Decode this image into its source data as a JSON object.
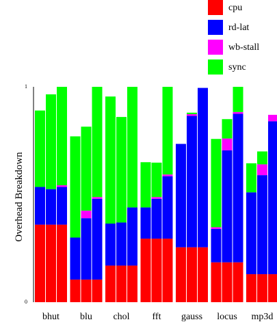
{
  "chart_data": {
    "type": "bar",
    "stacked": true,
    "ylabel": "Overhead Breakdown",
    "ylim": [
      0,
      1
    ],
    "yticks": [
      "0",
      "1"
    ],
    "legend_position": "top-right",
    "grid": false,
    "groups": [
      "bhut",
      "blu",
      "chol",
      "fft",
      "gauss",
      "locus",
      "mp3d"
    ],
    "bars_per_group": 3,
    "series": [
      {
        "name": "cpu",
        "color": "#ff0000",
        "values": [
          0.36,
          0.36,
          0.36,
          0.105,
          0.105,
          0.105,
          0.17,
          0.17,
          0.17,
          0.295,
          0.295,
          0.295,
          0.255,
          0.255,
          0.255,
          0.185,
          0.185,
          0.185,
          0.13,
          0.13,
          0.13
        ]
      },
      {
        "name": "rd-lat",
        "color": "#0000ff",
        "values": [
          0.175,
          0.165,
          0.175,
          0.195,
          0.285,
          0.375,
          0.195,
          0.2,
          0.27,
          0.145,
          0.185,
          0.29,
          0.48,
          0.61,
          0.74,
          0.155,
          0.52,
          0.69,
          0.38,
          0.46,
          0.71
        ]
      },
      {
        "name": "wb-stall",
        "color": "#ff00ff",
        "values": [
          0,
          0,
          0.008,
          0,
          0.035,
          0.008,
          0,
          0,
          0,
          0,
          0.008,
          0.008,
          0,
          0.008,
          0,
          0.008,
          0.055,
          0.008,
          0,
          0.05,
          0.03
        ]
      },
      {
        "name": "sync",
        "color": "#00ff00",
        "values": [
          0.355,
          0.44,
          0.457,
          0.47,
          0.39,
          0.512,
          0.59,
          0.49,
          0.56,
          0.21,
          0.16,
          0.407,
          0,
          0.007,
          0,
          0.41,
          0.09,
          0.117,
          0.135,
          0.06,
          0
        ]
      }
    ]
  }
}
